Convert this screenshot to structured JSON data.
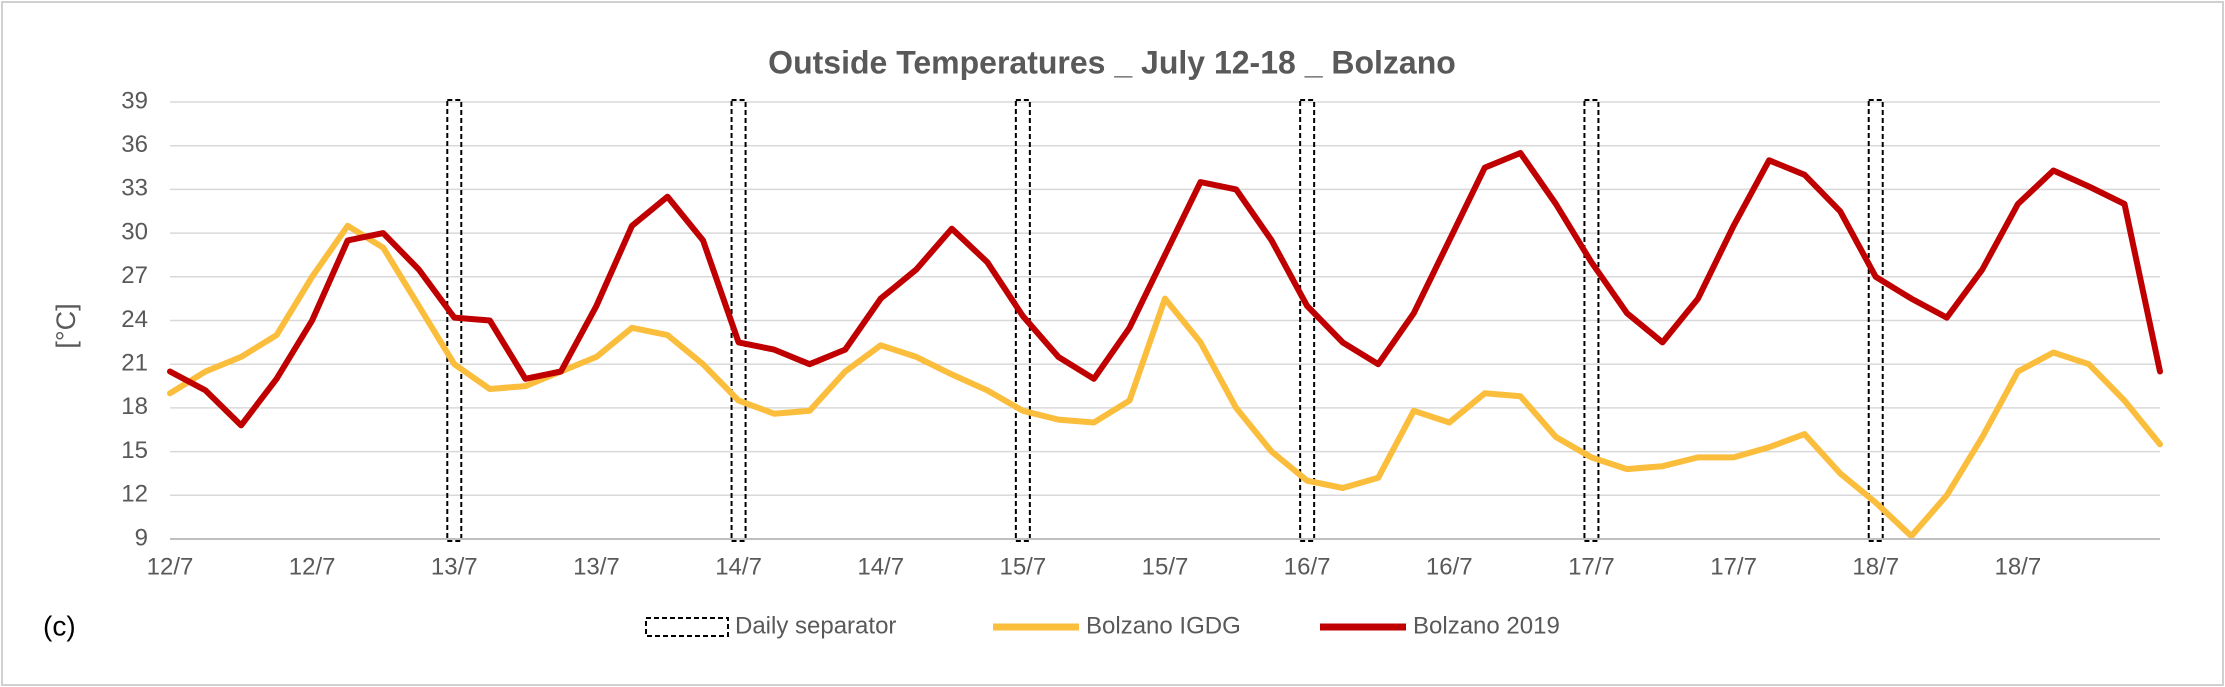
{
  "chart_data": {
    "type": "line",
    "title": "Outside Temperatures _ July 12-18 _ Bolzano",
    "y_label": "[°C]",
    "annotation": "(c)",
    "categories": [
      "12/7",
      null,
      null,
      null,
      "12/7",
      null,
      null,
      null,
      "13/7",
      null,
      null,
      null,
      "13/7",
      null,
      null,
      null,
      "14/7",
      null,
      null,
      null,
      "14/7",
      null,
      null,
      null,
      "15/7",
      null,
      null,
      null,
      "15/7",
      null,
      null,
      null,
      "16/7",
      null,
      null,
      null,
      "16/7",
      null,
      null,
      null,
      "17/7",
      null,
      null,
      null,
      "17/7",
      null,
      null,
      null,
      "18/7",
      null,
      null,
      null,
      "18/7",
      null,
      null,
      null,
      null
    ],
    "series": [
      {
        "name": "Bolzano IGDG",
        "color": "#fbbd3c",
        "values": [
          19,
          20.5,
          21.5,
          23,
          27,
          30.5,
          29,
          25,
          21,
          19.3,
          19.5,
          20.5,
          21.5,
          23.5,
          23,
          21,
          18.5,
          17.6,
          17.8,
          20.5,
          22.3,
          21.5,
          20.3,
          19.2,
          17.8,
          17.2,
          17,
          18.5,
          25.5,
          22.5,
          18,
          15,
          13,
          12.5,
          13.2,
          17.8,
          17,
          19,
          18.8,
          16,
          14.6,
          13.8,
          14,
          14.6,
          14.6,
          15.3,
          16.2,
          13.5,
          11.5,
          9.2,
          12,
          16,
          20.5,
          21.8,
          21,
          18.5,
          15.5
        ]
      },
      {
        "name": "Bolzano 2019",
        "color": "#c00000",
        "values": [
          20.5,
          19.2,
          16.8,
          20,
          24,
          29.5,
          30,
          27.5,
          24.2,
          24,
          20,
          20.5,
          25,
          30.5,
          32.5,
          29.5,
          22.5,
          22,
          21,
          22,
          25.5,
          27.5,
          30.3,
          28,
          24.3,
          21.5,
          20,
          23.5,
          28.5,
          33.5,
          33,
          29.5,
          25,
          22.5,
          21,
          24.5,
          29.5,
          34.5,
          35.5,
          32,
          28,
          24.5,
          22.5,
          25.5,
          30.5,
          35,
          34,
          31.5,
          27,
          25.5,
          24.2,
          27.5,
          32,
          34.3,
          33.2,
          32,
          20.5
        ]
      }
    ],
    "separator": {
      "name": "Daily separator",
      "at": [
        8,
        16,
        24,
        32,
        40,
        48
      ]
    },
    "ylim": [
      9,
      39
    ],
    "yticks": [
      9,
      12,
      15,
      18,
      21,
      24,
      27,
      30,
      33,
      36,
      39
    ],
    "grid": true
  }
}
